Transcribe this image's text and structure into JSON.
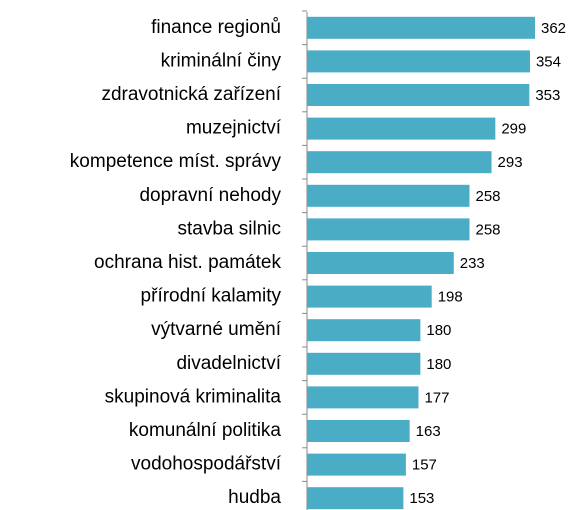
{
  "chart_data": {
    "type": "bar",
    "orientation": "horizontal",
    "categories": [
      "finance regionů",
      "kriminální činy",
      "zdravotnická zařízení",
      "muzejnictví",
      "kompetence míst. správy",
      "dopravní nehody",
      "stavba silnic",
      "ochrana hist. památek",
      "přírodní kalamity",
      "výtvarné umění",
      "divadelnictví",
      "skupinová kriminalita",
      "komunální politika",
      "vodohospodářství",
      "hudba"
    ],
    "values": [
      362,
      354,
      353,
      299,
      293,
      258,
      258,
      233,
      198,
      180,
      180,
      177,
      163,
      157,
      153
    ],
    "color": "#4bacc6"
  }
}
